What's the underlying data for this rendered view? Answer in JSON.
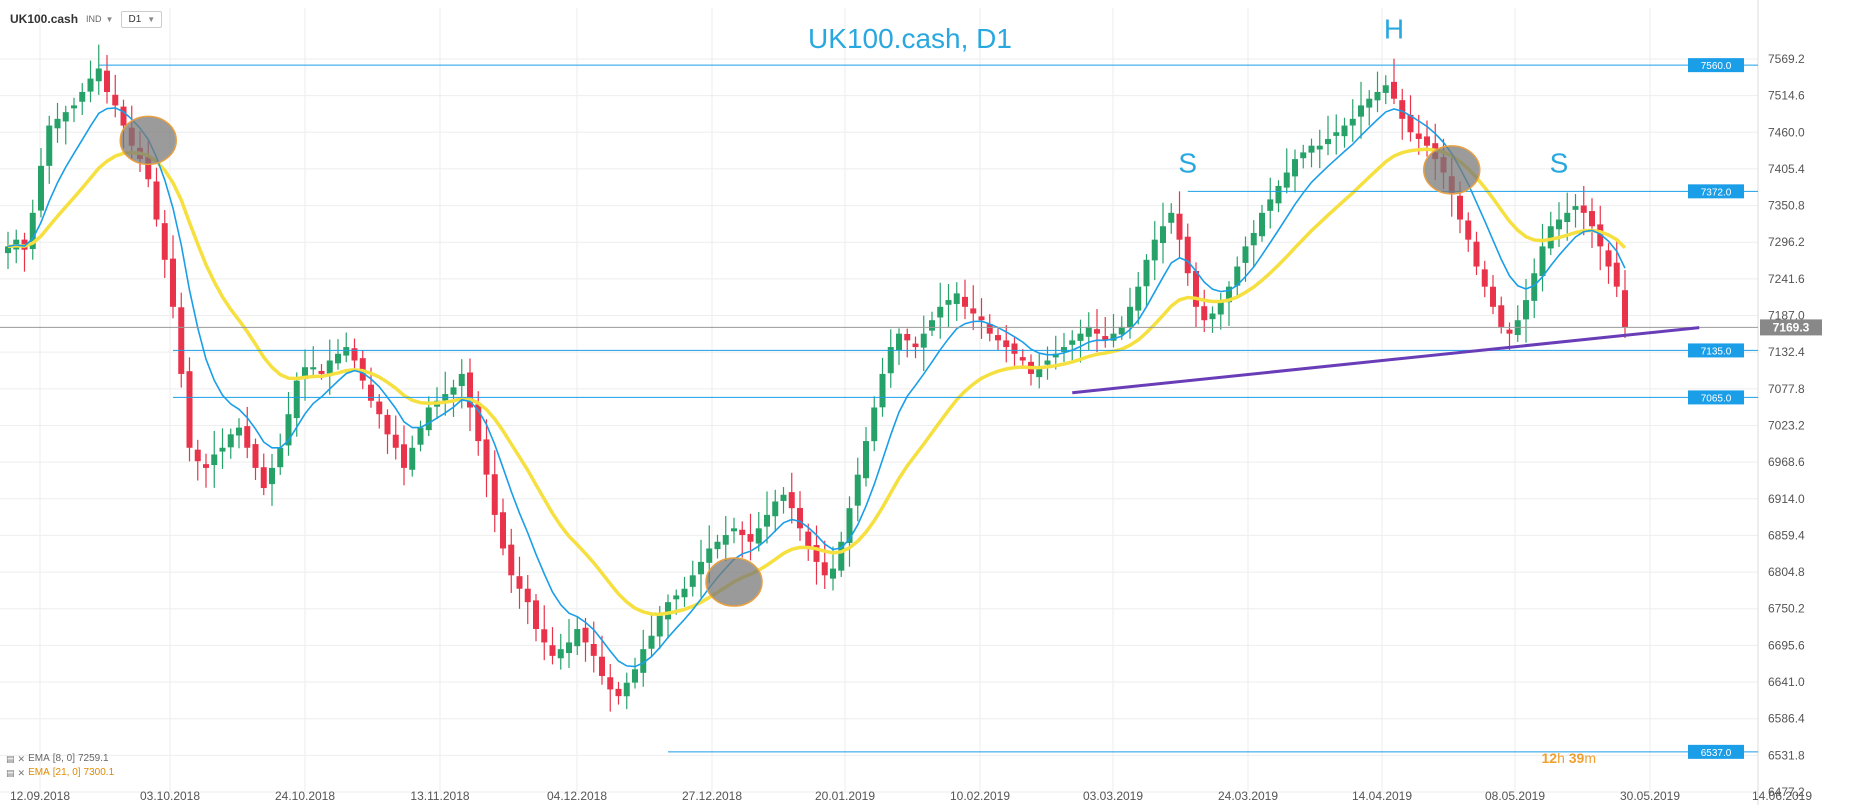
{
  "toolbar": {
    "symbol": "UK100.cash",
    "instrument_type": "IND",
    "timeframe": "D1"
  },
  "legend": {
    "ema_fast_label": "EMA",
    "ema_fast_params": "[8, 0]",
    "ema_fast_value": "7259.1",
    "ema_slow_label": "EMA",
    "ema_slow_params": "[21, 0]",
    "ema_slow_value": "7300.1"
  },
  "timer": {
    "hours": "12",
    "h_unit": "h",
    "minutes": "39",
    "m_unit": "m"
  },
  "colors": {
    "bull": "#26a269",
    "bear": "#e8334a",
    "ema_fast": "#1a9ee8",
    "ema_slow": "#f5e040",
    "hline": "#1a9ee8",
    "trendline": "#6a3db8",
    "label_bg": "#1a9ee8",
    "current_price_bg": "#888888",
    "title": "#29a8e0",
    "ellipse_fill": "#7a7a7a",
    "ellipse_stroke": "#e8a040"
  },
  "chart_data": {
    "type": "candlestick",
    "title": "UK100.cash, D1",
    "ylim": [
      6477.2,
      7590
    ],
    "y_ticks": [
      "7569.2",
      "7514.6",
      "7460.0",
      "7405.4",
      "7350.8",
      "7296.2",
      "7241.6",
      "7187.0",
      "7132.4",
      "7077.8",
      "7023.2",
      "6968.6",
      "6914.0",
      "6859.4",
      "6804.8",
      "6750.2",
      "6695.6",
      "6641.0",
      "6586.4",
      "6531.8",
      "6477.2"
    ],
    "x_labels": [
      "12.09.2018",
      "03.10.2018",
      "24.10.2018",
      "13.11.2018",
      "04.12.2018",
      "27.12.2018",
      "20.01.2019",
      "10.02.2019",
      "03.03.2019",
      "24.03.2019",
      "14.04.2019",
      "08.05.2019",
      "30.05.2019",
      "14.06.2019"
    ],
    "horizontal_levels": [
      {
        "value": 7560.0,
        "label": "7560.0",
        "from_index": 11
      },
      {
        "value": 7372.0,
        "label": "7372.0",
        "from_index": 143
      },
      {
        "value": 7135.0,
        "label": "7135.0",
        "from_index": 20
      },
      {
        "value": 7065.0,
        "label": "7065.0",
        "from_index": 20
      },
      {
        "value": 6537.0,
        "label": "6537.0",
        "from_index": 80
      }
    ],
    "current_price": {
      "value": 7169.3,
      "label": "7169.3"
    },
    "trendline": {
      "start": {
        "index": 129,
        "price": 7072
      },
      "end": {
        "index": 205,
        "price": 7169
      }
    },
    "pattern_labels": [
      {
        "text": "S",
        "index": 143,
        "price": 7400
      },
      {
        "text": "H",
        "index": 168,
        "price": 7600
      },
      {
        "text": "S",
        "index": 188,
        "price": 7400
      }
    ],
    "crossover_markers": [
      {
        "index": 17,
        "price": 7448
      },
      {
        "index": 88,
        "price": 6790
      },
      {
        "index": 175,
        "price": 7404
      }
    ],
    "closes": [
      7290,
      7300,
      7285,
      7340,
      7410,
      7470,
      7480,
      7490,
      7500,
      7520,
      7540,
      7555,
      7520,
      7500,
      7470,
      7440,
      7420,
      7390,
      7330,
      7270,
      7200,
      7100,
      6990,
      6970,
      6960,
      6980,
      6990,
      7010,
      7020,
      6990,
      6960,
      6930,
      6960,
      6990,
      7040,
      7090,
      7110,
      7110,
      7100,
      7120,
      7130,
      7140,
      7120,
      7090,
      7060,
      7040,
      7010,
      6990,
      6960,
      6990,
      7020,
      7050,
      7060,
      7070,
      7080,
      7100,
      7050,
      7000,
      6950,
      6890,
      6840,
      6800,
      6780,
      6760,
      6720,
      6700,
      6680,
      6690,
      6700,
      6720,
      6700,
      6680,
      6650,
      6630,
      6620,
      6640,
      6660,
      6690,
      6710,
      6740,
      6760,
      6770,
      6780,
      6800,
      6820,
      6840,
      6850,
      6860,
      6870,
      6860,
      6850,
      6870,
      6890,
      6910,
      6920,
      6900,
      6870,
      6840,
      6820,
      6800,
      6810,
      6850,
      6900,
      6950,
      7000,
      7050,
      7100,
      7140,
      7160,
      7150,
      7140,
      7160,
      7180,
      7200,
      7210,
      7220,
      7200,
      7190,
      7180,
      7160,
      7150,
      7140,
      7130,
      7120,
      7100,
      7110,
      7120,
      7130,
      7140,
      7150,
      7160,
      7170,
      7160,
      7150,
      7160,
      7170,
      7200,
      7230,
      7270,
      7300,
      7320,
      7340,
      7300,
      7250,
      7200,
      7180,
      7190,
      7210,
      7230,
      7260,
      7290,
      7310,
      7340,
      7360,
      7380,
      7400,
      7420,
      7430,
      7440,
      7440,
      7450,
      7460,
      7470,
      7480,
      7500,
      7510,
      7520,
      7530,
      7510,
      7480,
      7460,
      7450,
      7440,
      7420,
      7400,
      7370,
      7330,
      7300,
      7260,
      7230,
      7200,
      7170,
      7160,
      7180,
      7210,
      7250,
      7290,
      7320,
      7330,
      7340,
      7350,
      7340,
      7320,
      7290,
      7260,
      7230,
      7169.3
    ]
  }
}
